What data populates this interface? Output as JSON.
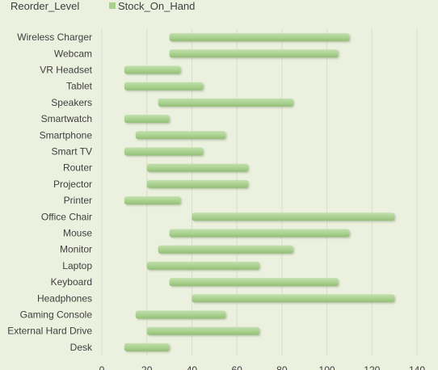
{
  "chart_data": {
    "type": "bar",
    "stacked": true,
    "orientation": "horizontal",
    "categories": [
      "Wireless Charger",
      "Webcam",
      "VR Headset",
      "Tablet",
      "Speakers",
      "Smartwatch",
      "Smartphone",
      "Smart TV",
      "Router",
      "Projector",
      "Printer",
      "Office Chair",
      "Mouse",
      "Monitor",
      "Laptop",
      "Keyboard",
      "Headphones",
      "Gaming Console",
      "External Hard Drive",
      "Desk"
    ],
    "series": [
      {
        "name": "Reorder_Level",
        "visible": false,
        "values": [
          30,
          30,
          10,
          10,
          25,
          10,
          15,
          10,
          20,
          20,
          10,
          40,
          30,
          25,
          20,
          30,
          40,
          15,
          20,
          10
        ]
      },
      {
        "name": "Stock_On_Hand",
        "color": "#a9d18e",
        "values": [
          80,
          75,
          25,
          35,
          60,
          20,
          40,
          35,
          45,
          45,
          25,
          90,
          80,
          60,
          50,
          75,
          90,
          40,
          50,
          20
        ]
      }
    ],
    "xlim": [
      0,
      140
    ],
    "xticks": [
      0,
      20,
      40,
      60,
      80,
      100,
      120,
      140
    ],
    "grid": true,
    "legend_position": "top",
    "background_color": "#ebf1de",
    "grid_color": "#d9dccf",
    "bar_color": "#a9d18e"
  }
}
